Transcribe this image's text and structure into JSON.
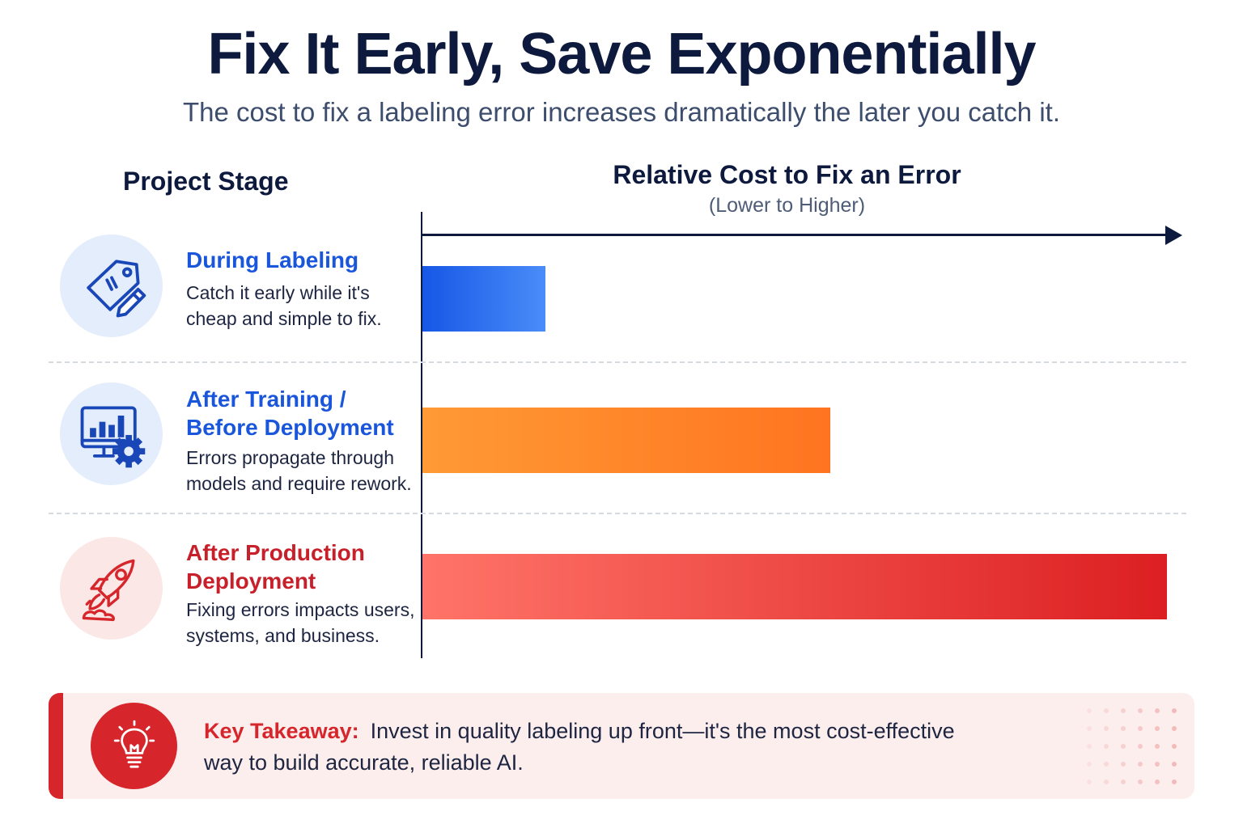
{
  "title": "Fix It Early, Save Exponentially",
  "subtitle": "The cost to fix a labeling error increases dramatically the later you catch it.",
  "column_headers": {
    "stage": "Project Stage",
    "cost": "Relative Cost to Fix an Error",
    "cost_note": "(Lower to Higher)"
  },
  "stages": [
    {
      "title_lines": [
        "During Labeling"
      ],
      "desc_lines": [
        "Catch it early while it's",
        "cheap and simple to fix."
      ],
      "color": "#1a56db",
      "icon": "tag-pencil-icon"
    },
    {
      "title_lines": [
        "After Training /",
        "Before Deployment"
      ],
      "desc_lines": [
        "Errors propagate through",
        "models and require rework."
      ],
      "color": "#1a56db",
      "icon": "monitor-chart-gear-icon"
    },
    {
      "title_lines": [
        "After Production",
        "Deployment"
      ],
      "desc_lines": [
        "Fixing errors impacts users,",
        "systems, and business."
      ],
      "color": "#c8202a",
      "icon": "rocket-icon"
    }
  ],
  "chart_data": {
    "type": "bar",
    "orientation": "horizontal",
    "categories": [
      "During Labeling",
      "After Training / Before Deployment",
      "After Production Deployment"
    ],
    "values": [
      0.165,
      0.548,
      1.0
    ],
    "xlabel": "Relative Cost to Fix an Error",
    "xlabel_note": "(Lower to Higher)",
    "ylabel": "Project Stage",
    "xlim": [
      0,
      1
    ],
    "grid": false,
    "colors": [
      [
        "#1657e6",
        "#4a8cf8"
      ],
      [
        "#ff9a35",
        "#ff7420"
      ],
      [
        "#ff7468",
        "#dc1f22"
      ]
    ]
  },
  "takeaway": {
    "label": "Key Takeaway:",
    "text_lines": [
      "Invest in quality labeling up front—it's the most cost-effective",
      "way to build accurate, reliable AI."
    ],
    "icon": "lightbulb-icon",
    "accent": "#d7262b"
  }
}
